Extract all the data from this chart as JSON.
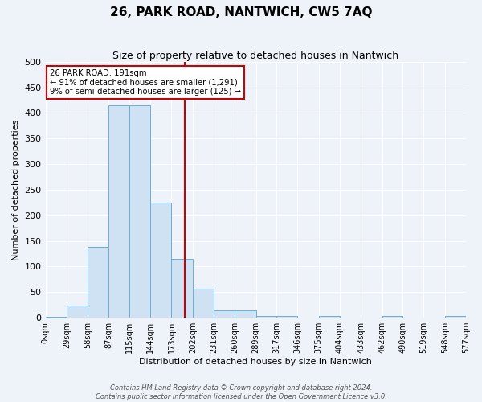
{
  "title": "26, PARK ROAD, NANTWICH, CW5 7AQ",
  "subtitle": "Size of property relative to detached houses in Nantwich",
  "xlabel": "Distribution of detached houses by size in Nantwich",
  "ylabel": "Number of detached properties",
  "bin_edges": [
    0,
    29,
    58,
    87,
    115,
    144,
    173,
    202,
    231,
    260,
    289,
    317,
    346,
    375,
    404,
    433,
    462,
    490,
    519,
    548,
    577
  ],
  "bar_heights": [
    1,
    23,
    138,
    415,
    415,
    225,
    115,
    57,
    15,
    15,
    3,
    3,
    0,
    3,
    0,
    0,
    3,
    0,
    0,
    3
  ],
  "bar_color": "#cfe2f3",
  "bar_edge_color": "#6aaed6",
  "ylim": [
    0,
    500
  ],
  "xlim": [
    0,
    577
  ],
  "property_size": 191,
  "vline_color": "#cc0000",
  "annotation_line1": "26 PARK ROAD: 191sqm",
  "annotation_line2": "← 91% of detached houses are smaller (1,291)",
  "annotation_line3": "9% of semi-detached houses are larger (125) →",
  "annotation_box_facecolor": "#ffffff",
  "annotation_box_edgecolor": "#cc0000",
  "tick_labels": [
    "0sqm",
    "29sqm",
    "58sqm",
    "87sqm",
    "115sqm",
    "144sqm",
    "173sqm",
    "202sqm",
    "231sqm",
    "260sqm",
    "289sqm",
    "317sqm",
    "346sqm",
    "375sqm",
    "404sqm",
    "433sqm",
    "462sqm",
    "490sqm",
    "519sqm",
    "548sqm",
    "577sqm"
  ],
  "yticks": [
    0,
    50,
    100,
    150,
    200,
    250,
    300,
    350,
    400,
    450,
    500
  ],
  "footer_line1": "Contains HM Land Registry data © Crown copyright and database right 2024.",
  "footer_line2": "Contains public sector information licensed under the Open Government Licence v3.0.",
  "bg_color": "#eef3fa",
  "grid_color": "#ffffff",
  "title_fontsize": 11,
  "subtitle_fontsize": 9,
  "axis_label_fontsize": 8,
  "tick_fontsize": 7,
  "footer_fontsize": 6
}
